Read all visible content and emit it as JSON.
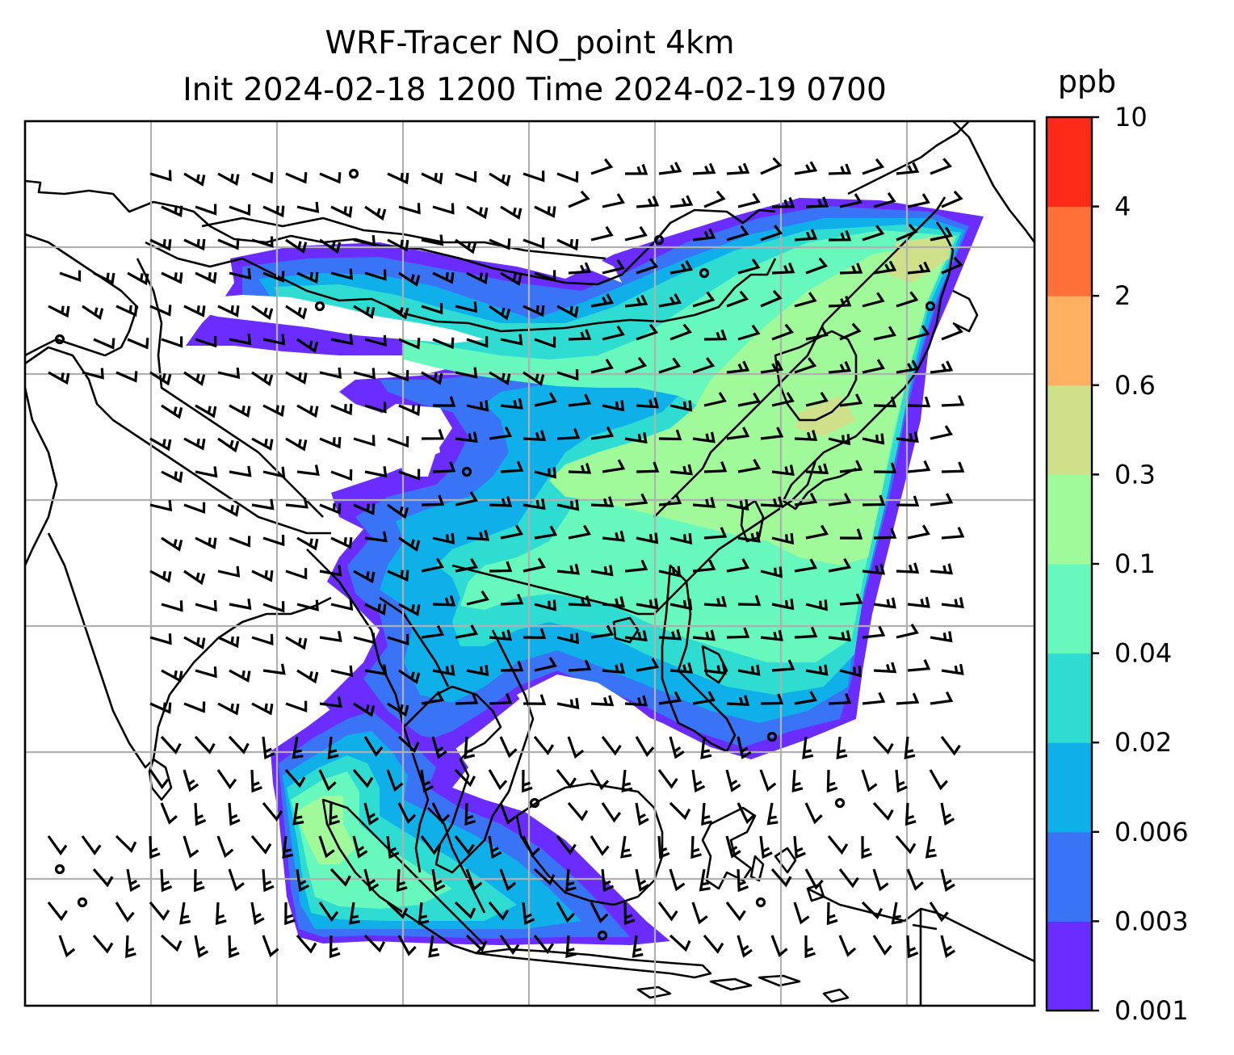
{
  "figure": {
    "title_line1": "WRF-Tracer NO_point 4km",
    "title_line2": "Init 2024-02-18 1200 Time 2024-02-19 0700"
  },
  "colorbar": {
    "unit": "ppb",
    "levels": [
      "0.001",
      "0.003",
      "0.006",
      "0.02",
      "0.04",
      "0.1",
      "0.3",
      "0.6",
      "2",
      "4",
      "10"
    ],
    "colors": [
      "#6a2cff",
      "#3a74f6",
      "#0fb0ea",
      "#2fdcd2",
      "#66f8bd",
      "#a0fa99",
      "#cfe08a",
      "#fdb160",
      "#ff7038",
      "#ff2a18"
    ]
  },
  "map": {
    "gridlines": true,
    "field_colors": {
      "low": "#6a2cff",
      "blue": "#3a74f6",
      "cyan": "#0fb0ea",
      "teal": "#2fdcd2",
      "mint": "#66f8bd",
      "green": "#a0fa99",
      "olive": "#cfe08a"
    }
  }
}
